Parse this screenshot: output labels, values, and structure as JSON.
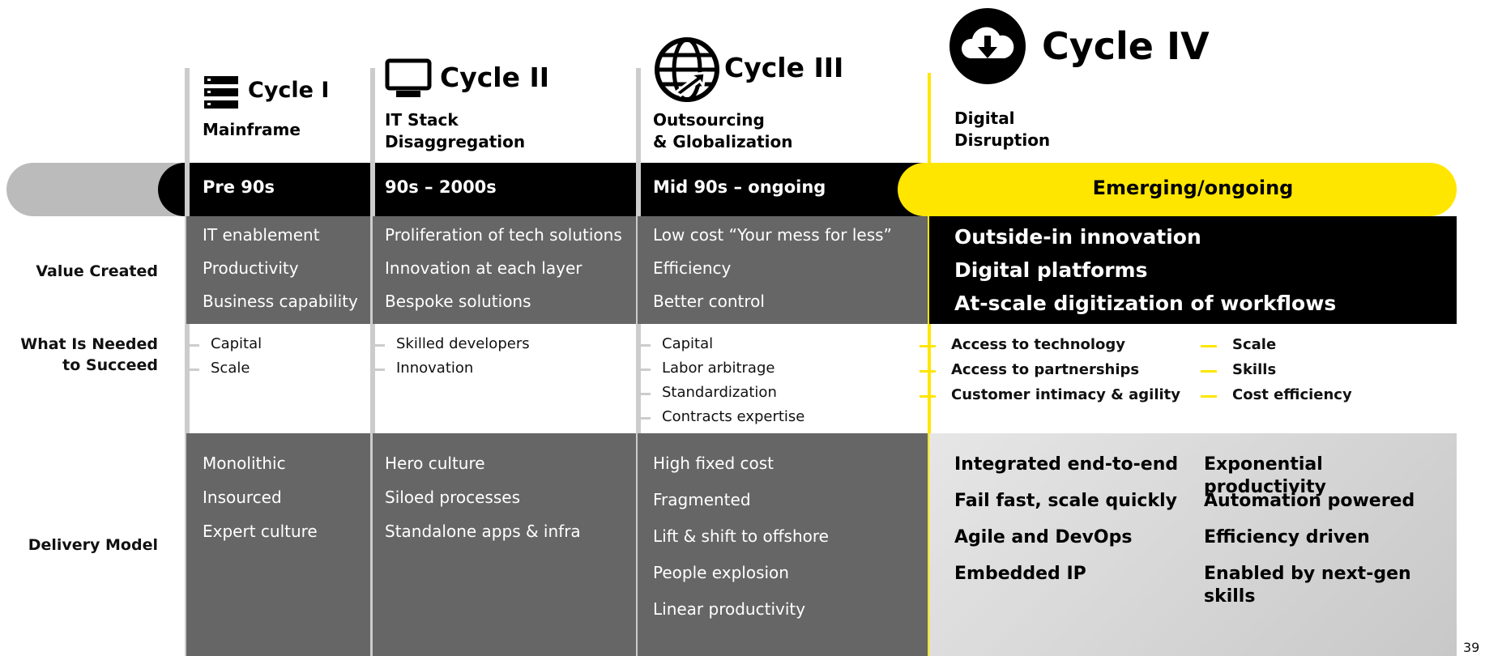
{
  "row_labels": [
    "Value Created",
    "What Is Needed to Succeed",
    "Delivery Model"
  ],
  "cycles": [
    {
      "title": "Cycle I",
      "subtitle": [
        "Mainframe"
      ],
      "period": "Pre 90s",
      "value_created": [
        "IT enablement",
        "Productivity",
        "Business capability"
      ],
      "needed": [
        "Capital",
        "Scale"
      ],
      "delivery": [
        "Monolithic",
        "Insourced",
        "Expert culture"
      ]
    },
    {
      "title": "Cycle II",
      "subtitle": [
        "IT Stack",
        "Disaggregation"
      ],
      "period": "90s – 2000s",
      "value_created": [
        "Proliferation of tech solutions",
        "Innovation at each layer",
        "Bespoke solutions"
      ],
      "needed": [
        "Skilled developers",
        "Innovation"
      ],
      "delivery": [
        "Hero culture",
        "Siloed processes",
        "Standalone apps & infra"
      ]
    },
    {
      "title": "Cycle III",
      "subtitle": [
        "Outsourcing",
        "& Globalization"
      ],
      "period": "Mid 90s – ongoing",
      "value_created": [
        "Low cost “Your mess for less”",
        "Efficiency",
        "Better control"
      ],
      "needed": [
        "Capital",
        "Labor arbitrage",
        "Standardization",
        "Contracts expertise"
      ],
      "delivery": [
        "High fixed cost",
        "Fragmented",
        "Lift & shift to offshore",
        "People explosion",
        "Linear productivity"
      ]
    },
    {
      "title": "Cycle IV",
      "subtitle": [
        "Digital",
        "Disruption"
      ],
      "period": "Emerging/ongoing",
      "value_created": [
        "Outside-in innovation",
        "Digital platforms",
        "At-scale digitization of workflows"
      ],
      "needed": [
        "Access to technology",
        "Access to partnerships",
        "Customer intimacy & agility",
        "Scale",
        "Skills",
        "Cost efficiency"
      ],
      "delivery": [
        "Integrated end-to-end",
        "Fail fast, scale quickly",
        "Agile and DevOps",
        "Embedded IP",
        "Exponential productivity",
        "Automation powered",
        "Efficiency driven",
        "Enabled by next-gen skills"
      ]
    }
  ],
  "page_number": "39"
}
